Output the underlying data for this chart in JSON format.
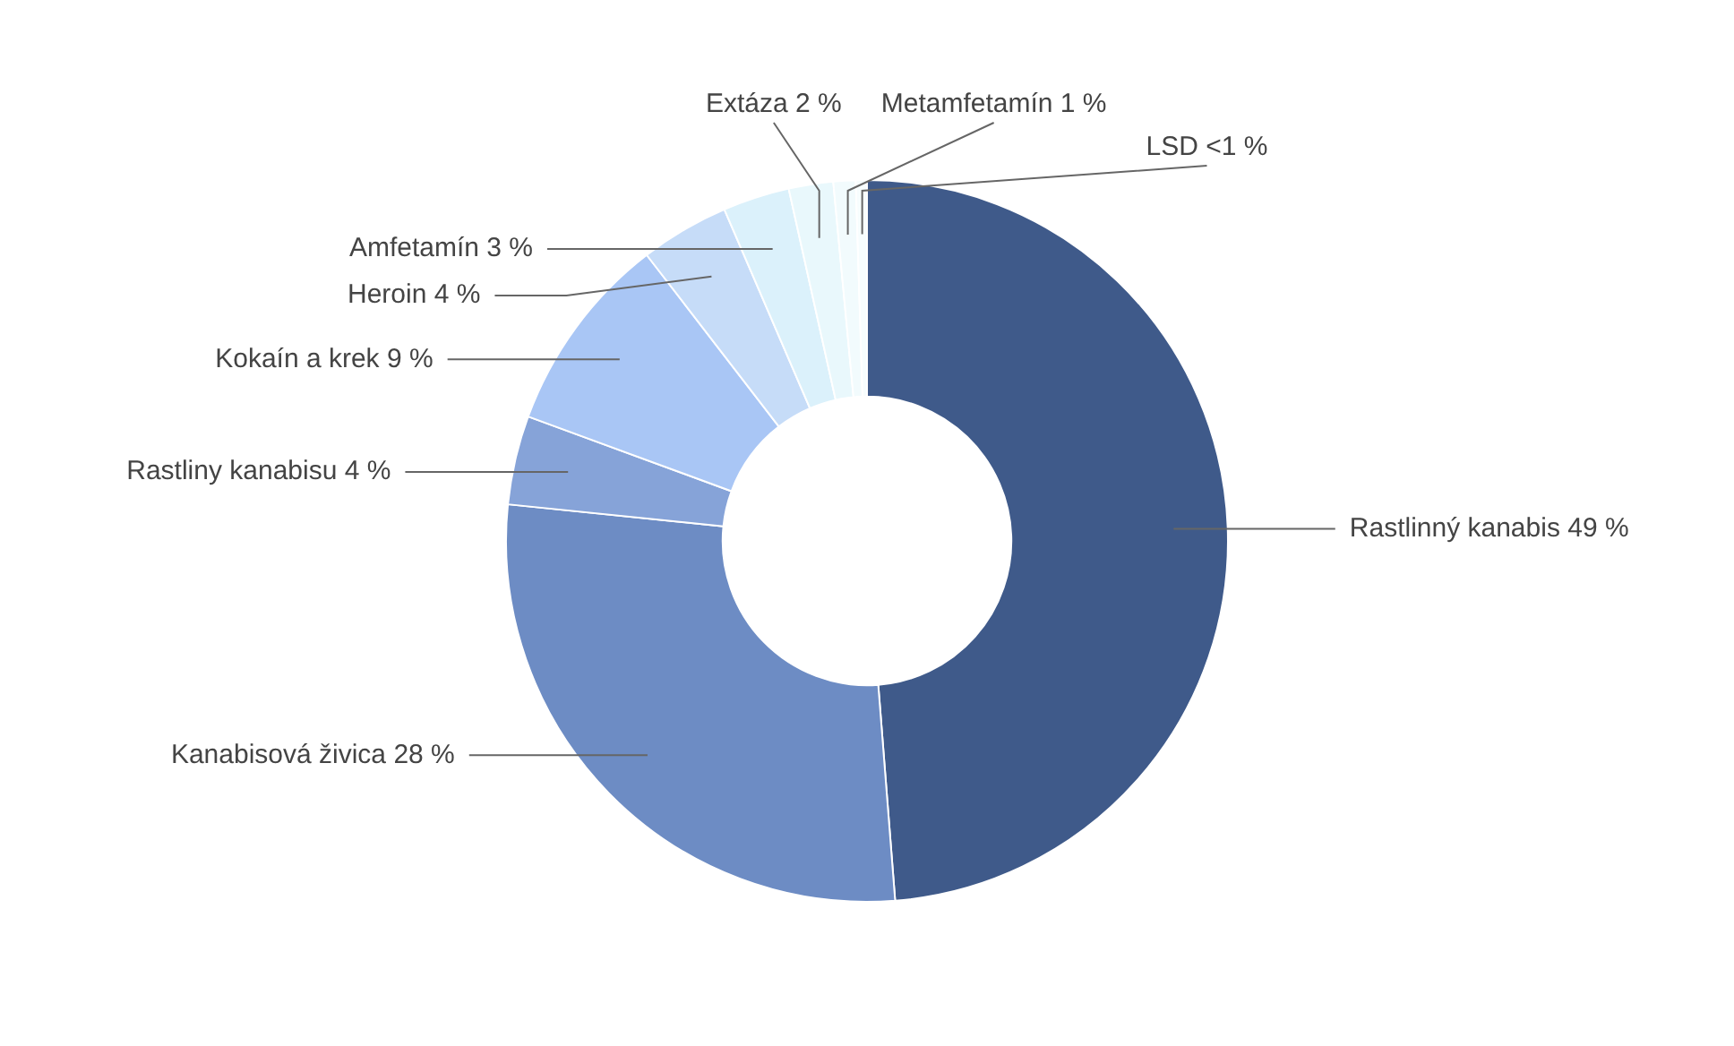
{
  "chart_data": {
    "type": "donut",
    "categories": [
      "Rastlinný kanabis",
      "Kanabisová živica",
      "Rastliny kanabisu",
      "Kokaín a krek",
      "Heroin",
      "Amfetamín",
      "Extáza",
      "Metamfetamín",
      "LSD"
    ],
    "values": [
      49,
      28,
      4,
      9,
      4,
      3,
      2,
      1,
      0.5
    ],
    "value_labels": [
      "49 %",
      "28 %",
      "4 %",
      "9 %",
      "4 %",
      "3 %",
      "2 %",
      "1 %",
      "<1 %"
    ],
    "colors": [
      "#3f5a8a",
      "#6d8cc4",
      "#86a3d8",
      "#a9c6f5",
      "#c6dcf8",
      "#dbf1fb",
      "#e9f8fc",
      "#f2fbfd",
      "#f7fdfe"
    ],
    "legend": false
  }
}
